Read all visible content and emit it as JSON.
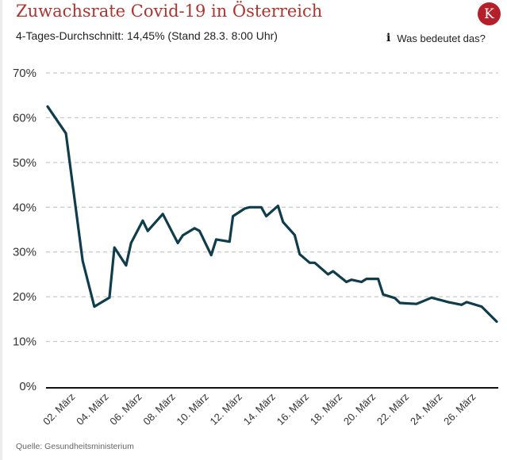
{
  "header": {
    "title": "Zuwachsrate Covid-19 in Österreich",
    "subtitle": "4-Tages-Durchschnitt: 14,45% (Stand 28.3. 8:00 Uhr)",
    "logo_letter": "K",
    "info_icon": "info-icon",
    "info_label": "Was bedeutet das?"
  },
  "footer": {
    "source": "Quelle: Gesundheitsministerium"
  },
  "colors": {
    "title": "#b0342e",
    "logo_bg": "#b51f2a",
    "line": "#0f3d4c",
    "grid": "#c8c8c8",
    "axis": "#111111"
  },
  "chart_data": {
    "type": "line",
    "title": "Zuwachsrate Covid-19 in Österreich",
    "subtitle": "4-Tages-Durchschnitt: 14,45% (Stand 28.3. 8:00 Uhr)",
    "xlabel": "",
    "ylabel": "",
    "ylim": [
      0,
      70
    ],
    "xlim_days": [
      0.7,
      27.6
    ],
    "grid": true,
    "legend": "none",
    "y_ticks": [
      0,
      10,
      20,
      30,
      40,
      50,
      60,
      70
    ],
    "y_tick_labels": [
      "0%",
      "10%",
      "20%",
      "30%",
      "40%",
      "50%",
      "60%",
      "70%"
    ],
    "x_ticks": [
      2,
      4,
      6,
      8,
      10,
      12,
      14,
      16,
      18,
      20,
      22,
      24,
      26
    ],
    "x_tick_labels": [
      "02. März",
      "04. März",
      "06. März",
      "08. März",
      "10. März",
      "12. März",
      "14. März",
      "16. März",
      "18. März",
      "20. März",
      "22. März",
      "24. März",
      "26. März"
    ],
    "series": [
      {
        "name": "Zuwachsrate (4-Tages-Durchschnitt)",
        "x_day": [
          0.7,
          1.8,
          2.8,
          3.5,
          4.4,
          4.7,
          5.4,
          5.7,
          6.4,
          6.7,
          7.6,
          8.5,
          8.8,
          9.5,
          9.8,
          10.5,
          10.8,
          11.6,
          11.8,
          12.5,
          12.8,
          13.5,
          13.8,
          14.5,
          14.8,
          15.5,
          15.8,
          16.4,
          16.7,
          17.5,
          17.8,
          18.6,
          18.9,
          19.5,
          19.8,
          20.5,
          20.8,
          21.5,
          21.8,
          22.8,
          23.7,
          24.7,
          25.5,
          25.8,
          26.7,
          27.6
        ],
        "values": [
          62.5,
          56.5,
          28.0,
          17.8,
          19.8,
          31.0,
          27.0,
          32.0,
          37.0,
          34.7,
          38.5,
          32.0,
          33.7,
          35.3,
          34.7,
          29.3,
          32.8,
          32.3,
          38.0,
          39.7,
          40.0,
          40.0,
          38.0,
          40.3,
          36.7,
          33.8,
          29.5,
          27.6,
          27.6,
          25.0,
          25.7,
          23.3,
          23.8,
          23.3,
          24.0,
          24.0,
          20.5,
          19.7,
          18.6,
          18.4,
          19.8,
          18.8,
          18.2,
          18.8,
          17.8,
          14.45
        ]
      }
    ]
  }
}
